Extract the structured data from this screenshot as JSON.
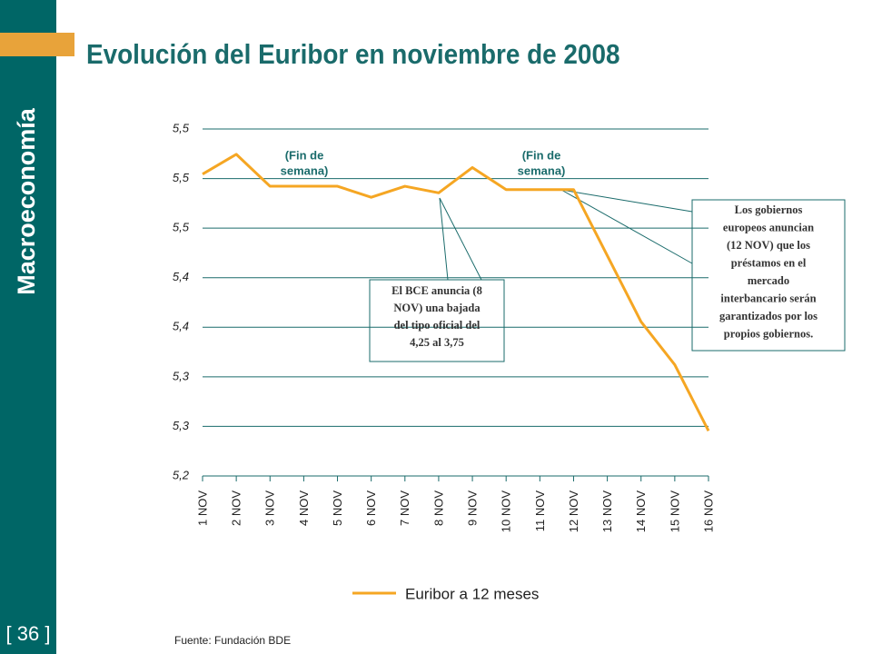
{
  "sidebar": "Macroeconomía",
  "page_number": "[ 36 ]",
  "source": "Fuente: Fundación BDE",
  "chart_data": {
    "type": "line",
    "title": "Evolución del Euribor en noviembre de 2008",
    "categories": [
      "1 NOV",
      "2 NOV",
      "3 NOV",
      "4 NOV",
      "5 NOV",
      "6 NOV",
      "7 NOV",
      "8 NOV",
      "9 NOV",
      "10 NOV",
      "11 NOV",
      "12 NOV",
      "13 NOV",
      "14 NOV",
      "15 NOV",
      "16 NOV"
    ],
    "series": [
      {
        "name": "Euribor a 12 meses",
        "color": "#f5a623",
        "values": [
          5.504,
          5.522,
          5.493,
          5.493,
          5.493,
          5.483,
          5.493,
          5.487,
          5.51,
          5.49,
          5.49,
          5.49,
          5.43,
          5.37,
          5.331,
          5.271
        ]
      }
    ],
    "ylim": [
      5.23,
      5.545
    ],
    "yticks": [
      {
        "value": 5.23,
        "label": "5,2"
      },
      {
        "value": 5.275,
        "label": "5,3"
      },
      {
        "value": 5.32,
        "label": "5,3"
      },
      {
        "value": 5.365,
        "label": "5,4"
      },
      {
        "value": 5.41,
        "label": "5,4"
      },
      {
        "value": 5.455,
        "label": "5,5"
      },
      {
        "value": 5.5,
        "label": "5,5"
      },
      {
        "value": 5.545,
        "label": "5,5"
      }
    ],
    "grid": true,
    "annotations": [
      {
        "lines": [
          "(Fin de",
          "semana)"
        ]
      },
      {
        "lines": [
          "(Fin de",
          "semana)"
        ]
      },
      {
        "lines": [
          "El BCE anuncia (8",
          "NOV) una bajada",
          "del tipo oficial del",
          "4,25 al 3,75"
        ]
      },
      {
        "lines": [
          "Los gobiernos",
          "europeos anuncian",
          "(12 NOV) que los",
          "préstamos en el",
          "mercado",
          "interbancario serán",
          "garantizados por los",
          "propios gobiernos."
        ]
      }
    ]
  }
}
